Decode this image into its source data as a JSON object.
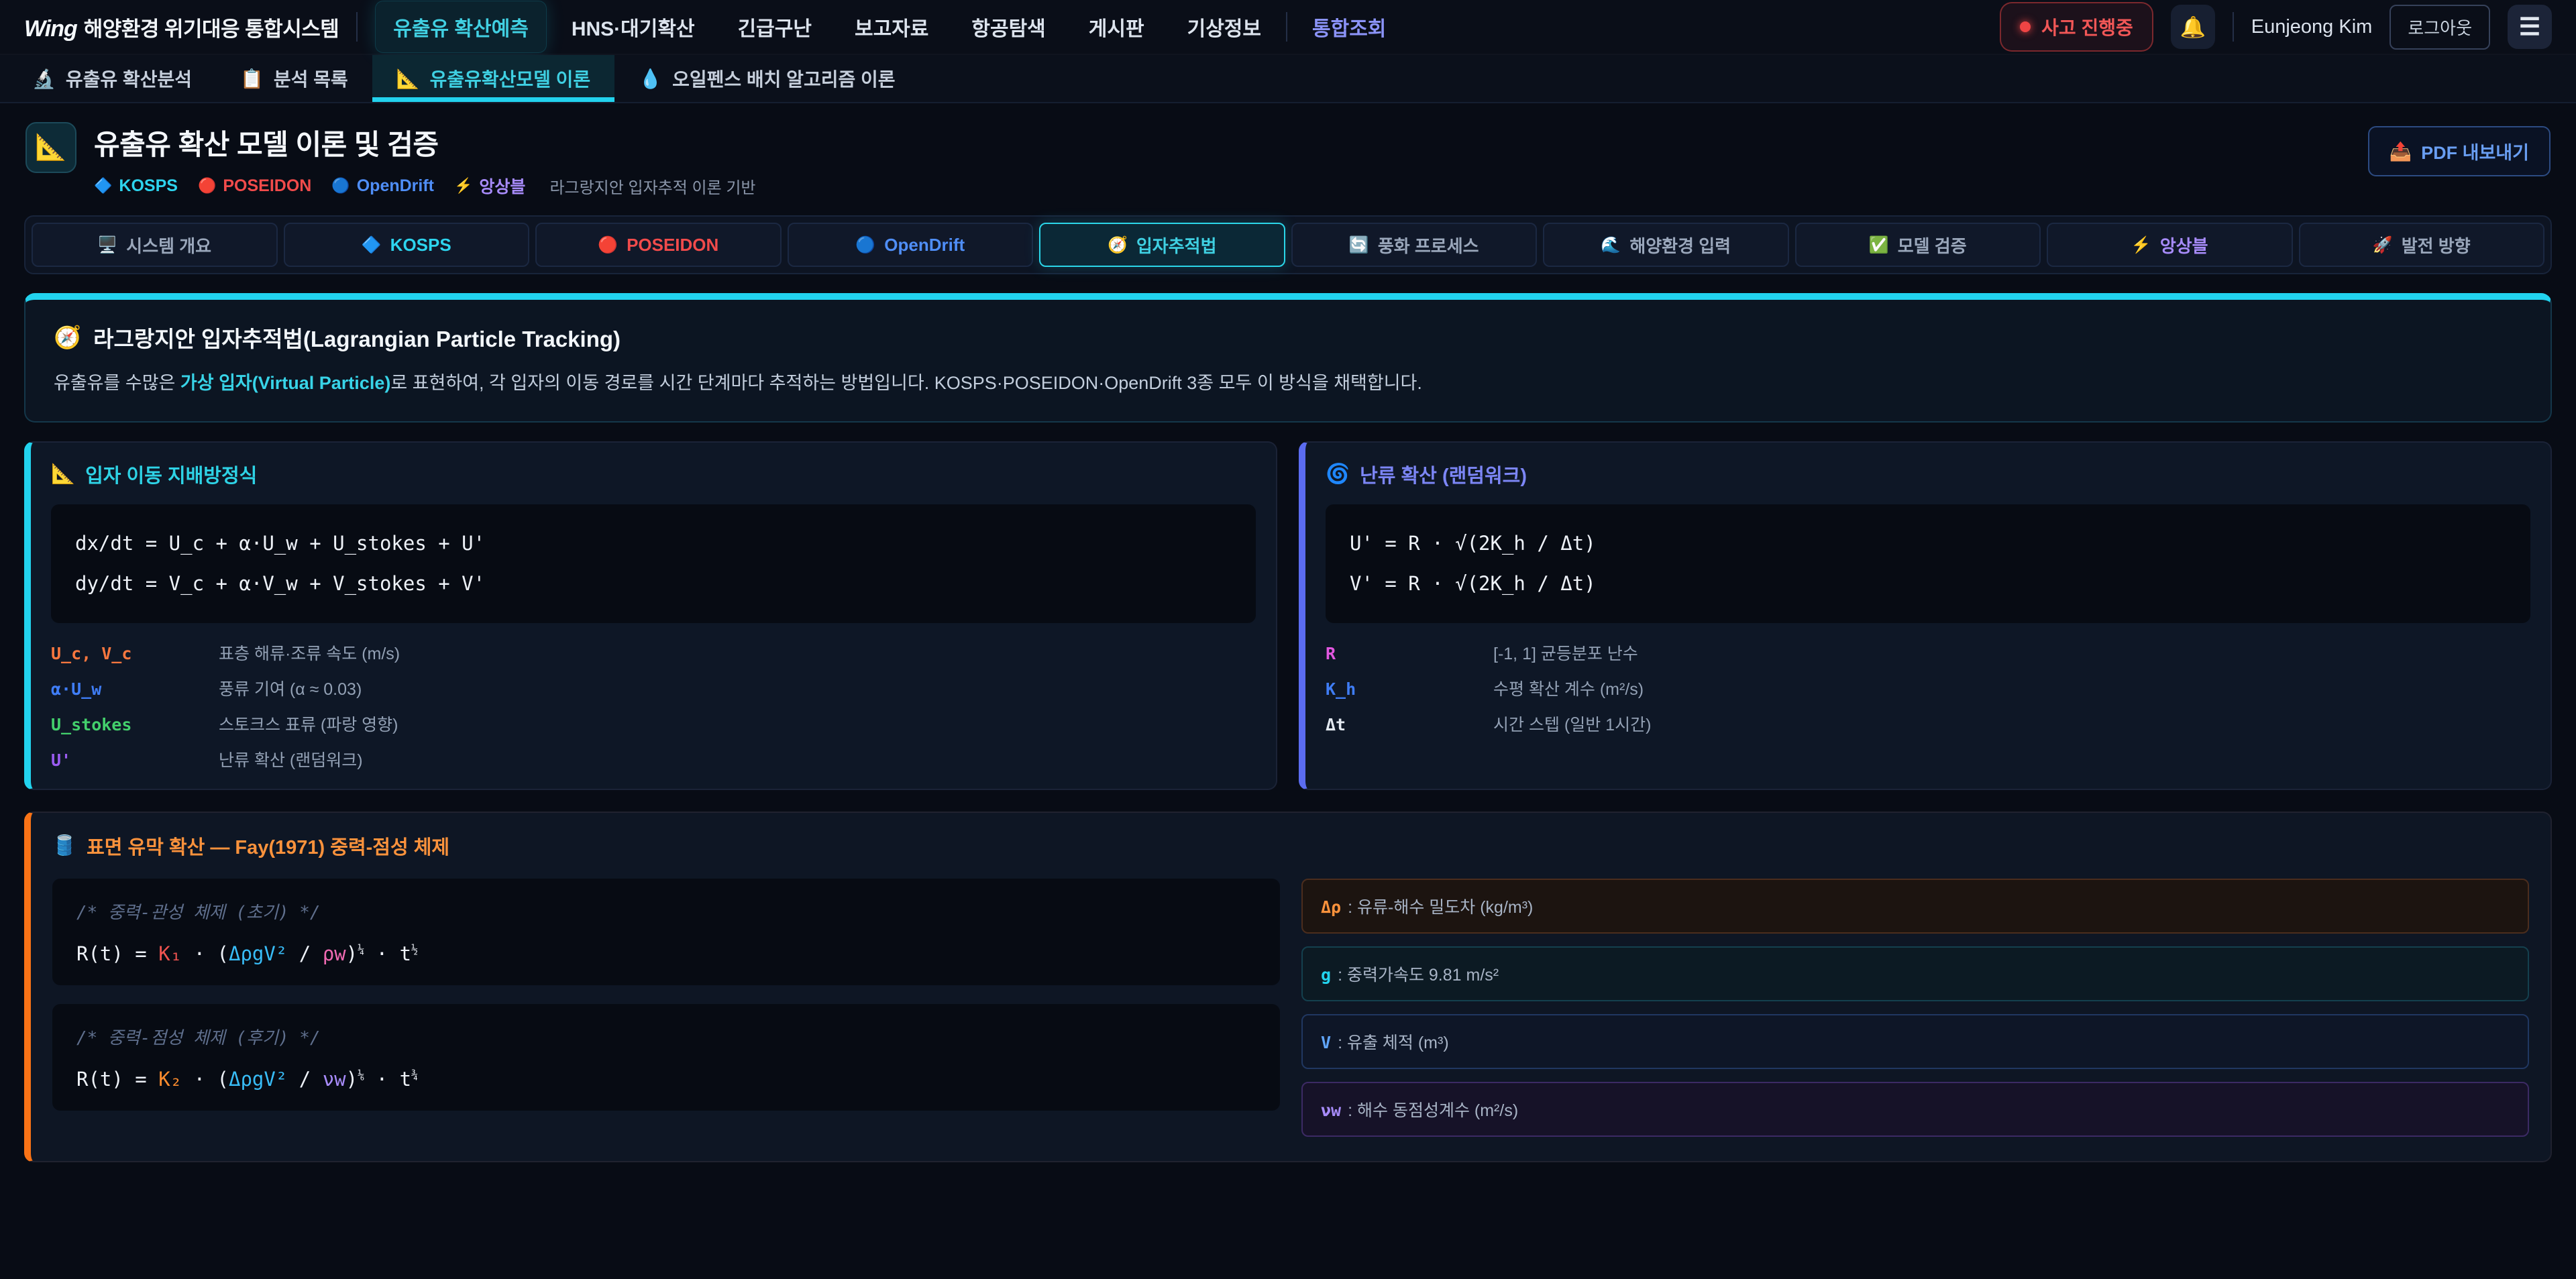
{
  "colors": {
    "accent_cyan": "#22d3ee",
    "accent_red": "#ef4444",
    "accent_blue": "#60a5fa",
    "accent_indigo": "#5b6cf0",
    "accent_purple": "#a78bfa",
    "accent_orange": "#f97316",
    "page_bg": "#080c15",
    "card_bg": "#0e1726",
    "code_bg": "#070b13"
  },
  "topbar": {
    "logo_mark": "Wing",
    "logo_text": "해양환경 위기대응 통합시스템",
    "nav": [
      {
        "label": "유출유 확산예측"
      },
      {
        "label": "HNS·대기확산"
      },
      {
        "label": "긴급구난"
      },
      {
        "label": "보고자료"
      },
      {
        "label": "항공탐색"
      },
      {
        "label": "게시판"
      },
      {
        "label": "기상정보"
      },
      {
        "label": "통합조회"
      }
    ],
    "incident_badge": "사고 진행중",
    "bell_icon": "🔔",
    "user_name": "Eunjeong Kim",
    "logout_label": "로그아웃",
    "hamburger_icon": "☰"
  },
  "tabbar": {
    "tabs": [
      {
        "icon": "🔬",
        "label": "유출유 확산분석"
      },
      {
        "icon": "📋",
        "label": "분석 목록"
      },
      {
        "icon": "📐",
        "label": "유출유확산모델 이론"
      },
      {
        "icon": "💧",
        "label": "오일펜스 배치 알고리즘 이론"
      }
    ]
  },
  "header": {
    "icon": "📐",
    "title": "유출유 확산 모델 이론 및 검증",
    "badges": [
      {
        "icon": "🔷",
        "label": "KOSPS"
      },
      {
        "icon": "🔴",
        "label": "POSEIDON"
      },
      {
        "icon": "🔵",
        "label": "OpenDrift"
      },
      {
        "icon": "⚡",
        "label": "앙상블"
      }
    ],
    "subtitle": "라그랑지안 입자추적 이론 기반",
    "pdf_button": {
      "icon": "📤",
      "label": "PDF 내보내기"
    }
  },
  "chips": [
    {
      "icon": "🖥️",
      "label": "시스템 개요"
    },
    {
      "icon": "🔷",
      "label": "KOSPS"
    },
    {
      "icon": "🔴",
      "label": "POSEIDON"
    },
    {
      "icon": "🔵",
      "label": "OpenDrift"
    },
    {
      "icon": "🧭",
      "label": "입자추적법"
    },
    {
      "icon": "🔄",
      "label": "풍화 프로세스"
    },
    {
      "icon": "🌊",
      "label": "해양환경 입력"
    },
    {
      "icon": "✅",
      "label": "모델 검증"
    },
    {
      "icon": "⚡",
      "label": "앙상블"
    },
    {
      "icon": "🚀",
      "label": "발전 방향"
    }
  ],
  "intro": {
    "icon": "🧭",
    "heading": "라그랑지안 입자추적법(Lagrangian Particle Tracking)",
    "text_before": "유출유를 수많은 ",
    "text_highlight": "가상 입자(Virtual Particle)",
    "text_after": "로 표현하여, 각 입자의 이동 경로를 시간 단계마다 추적하는 방법입니다. KOSPS·POSEIDON·OpenDrift 3종 모두 이 방식을 채택합니다."
  },
  "governing_card": {
    "icon": "📐",
    "title": "입자 이동 지배방정식",
    "code_line_1": "dx/dt = U_c + α·U_w + U_stokes + U'",
    "code_line_2": "dy/dt = V_c + α·V_w + V_stokes + V'",
    "legend": [
      {
        "term": "U_c, V_c",
        "desc": "표층 해류·조류 속도 (m/s)"
      },
      {
        "term": "α·U_w",
        "desc": "풍류 기여 (α ≈ 0.03)"
      },
      {
        "term": "U_stokes",
        "desc": "스토크스 표류 (파랑 영향)"
      },
      {
        "term": "U'",
        "desc": "난류 확산 (랜덤워크)"
      }
    ]
  },
  "turbulence_card": {
    "icon": "🌀",
    "title": "난류 확산 (랜덤워크)",
    "code_line_1": "U' = R · √(2K_h / Δt)",
    "code_line_2": "V' = R · √(2K_h / Δt)",
    "legend": [
      {
        "term": "R",
        "desc": "[-1, 1] 균등분포 난수"
      },
      {
        "term": "K_h",
        "desc": "수평 확산 계수 (m²/s)"
      },
      {
        "term": "Δt",
        "desc": "시간 스텝 (일반 1시간)"
      }
    ]
  },
  "fay_card": {
    "icon": "🛢️",
    "title": "표면 유막 확산 — Fay(1971) 중력-점성 체제",
    "blocks": [
      {
        "comment": "/* 중력-관성 체제 (초기) */",
        "formula": [
          {
            "t": "R(t) = ",
            "c": "w"
          },
          {
            "t": "K₁",
            "c": "red"
          },
          {
            "t": " · (",
            "c": "w"
          },
          {
            "t": "ΔρgV²",
            "c": "blue"
          },
          {
            "t": " / ",
            "c": "w"
          },
          {
            "t": "ρw",
            "c": "pink"
          },
          {
            "t": ")",
            "c": "w"
          },
          {
            "t": "¼",
            "c": "sup"
          },
          {
            "t": " · t",
            "c": "w"
          },
          {
            "t": "½",
            "c": "sup"
          }
        ]
      },
      {
        "comment": "/* 중력-점성 체제 (후기) */",
        "formula": [
          {
            "t": "R(t) = ",
            "c": "w"
          },
          {
            "t": "K₂",
            "c": "orange"
          },
          {
            "t": " · (",
            "c": "w"
          },
          {
            "t": "ΔρgV²",
            "c": "blue"
          },
          {
            "t": " / ",
            "c": "w"
          },
          {
            "t": "νw",
            "c": "purple"
          },
          {
            "t": ")",
            "c": "w"
          },
          {
            "t": "⅙",
            "c": "sup"
          },
          {
            "t": " · t",
            "c": "w"
          },
          {
            "t": "¾",
            "c": "sup"
          }
        ]
      }
    ],
    "params": [
      {
        "term": "Δρ",
        "desc": ": 유류-해수 밀도차 (kg/m³)"
      },
      {
        "term": "g",
        "desc": ": 중력가속도 9.81 m/s²"
      },
      {
        "term": "V",
        "desc": ": 유출 체적 (m³)"
      },
      {
        "term": "νw",
        "desc": ": 해수 동점성계수 (m²/s)"
      }
    ]
  }
}
